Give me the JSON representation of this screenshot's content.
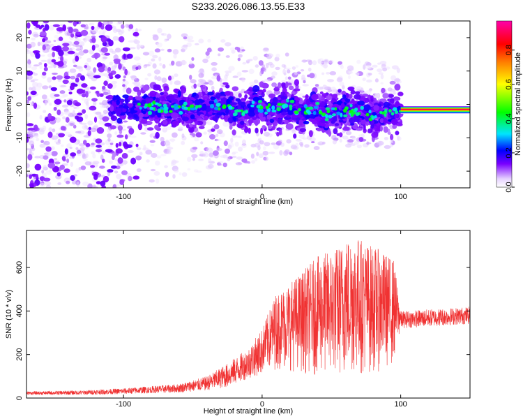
{
  "title": "S233.2026.086.13.55.E33",
  "chart_data": [
    {
      "type": "scatter",
      "xlabel": "Height of straight line (km)",
      "ylabel": "Frequency (Hz)",
      "xlim": [
        -170,
        150
      ],
      "ylim": [
        -25,
        25
      ],
      "xticks": [
        -100,
        0,
        100
      ],
      "yticks": [
        -20,
        -10,
        0,
        10,
        20
      ],
      "colorbar": {
        "label": "Normalized spectral amplitude",
        "range": [
          0,
          0.97
        ],
        "ticks": [
          "0.0",
          "0.2",
          "0.4",
          "0.6",
          "0.8"
        ],
        "tick_values": [
          0.0,
          0.2,
          0.4,
          0.6,
          0.8
        ],
        "colormap": [
          "#ffffff",
          "#e6d2ff",
          "#7a00ff",
          "#0000ff",
          "#00e5ff",
          "#00ff00",
          "#ffff00",
          "#ff8000",
          "#ff0000",
          "#ff00aa"
        ]
      },
      "stable_band": {
        "x_range": [
          100,
          150
        ],
        "frequency": -1.6,
        "amplitude": 0.97
      },
      "ridge": [
        [
          -85,
          -1.0
        ],
        [
          -70,
          -0.8
        ],
        [
          -60,
          -1.2
        ],
        [
          -45,
          -0.5
        ],
        [
          -35,
          -0.3
        ],
        [
          -25,
          -1.0
        ],
        [
          -18,
          -2.5
        ],
        [
          -10,
          -1.5
        ],
        [
          -5,
          0.0
        ],
        [
          5,
          -1.5
        ],
        [
          12,
          -0.8
        ],
        [
          20,
          0.0
        ],
        [
          28,
          -2.5
        ],
        [
          35,
          -1.0
        ],
        [
          45,
          -3.0
        ],
        [
          55,
          -2.0
        ],
        [
          63,
          -1.8
        ],
        [
          70,
          -2.3
        ],
        [
          78,
          -3.5
        ],
        [
          85,
          -3.0
        ],
        [
          92,
          -2.5
        ],
        [
          100,
          -2.0
        ]
      ]
    },
    {
      "type": "line",
      "xlabel": "Height of straight line (km)",
      "ylabel": "SNR (10 * v/v)",
      "xlim": [
        -170,
        150
      ],
      "ylim": [
        0,
        770
      ],
      "xticks": [
        -100,
        0,
        100
      ],
      "yticks": [
        0,
        200,
        400,
        600
      ],
      "color": "#f03232",
      "envelope": [
        [
          -170,
          15,
          30
        ],
        [
          -130,
          15,
          35
        ],
        [
          -100,
          18,
          45
        ],
        [
          -80,
          22,
          55
        ],
        [
          -60,
          25,
          65
        ],
        [
          -40,
          35,
          100
        ],
        [
          -25,
          50,
          160
        ],
        [
          -10,
          90,
          230
        ],
        [
          0,
          110,
          320
        ],
        [
          10,
          130,
          480
        ],
        [
          25,
          120,
          560
        ],
        [
          40,
          100,
          650
        ],
        [
          55,
          90,
          700
        ],
        [
          65,
          100,
          760
        ],
        [
          80,
          110,
          700
        ],
        [
          95,
          150,
          640
        ],
        [
          100,
          320,
          400
        ],
        [
          125,
          330,
          410
        ],
        [
          150,
          340,
          420
        ]
      ]
    }
  ]
}
